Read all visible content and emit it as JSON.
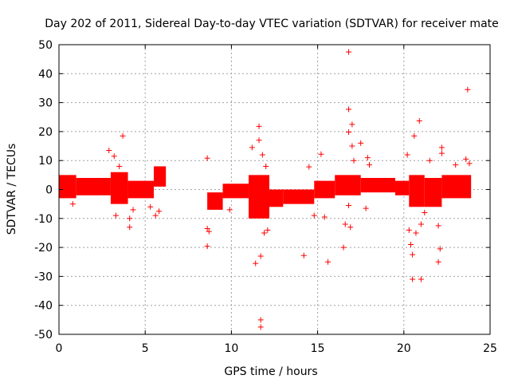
{
  "chart_data": {
    "type": "scatter",
    "title": "Day 202 of 2011, Sidereal Day-to-day VTEC variation (SDTVAR) for receiver mate",
    "xlabel": "GPS time / hours",
    "ylabel": "SDTVAR / TECUs",
    "xlim": [
      0,
      25
    ],
    "ylim": [
      -50,
      50
    ],
    "x_ticks": [
      0,
      5,
      10,
      15,
      20,
      25
    ],
    "y_ticks": [
      -50,
      -40,
      -30,
      -20,
      -10,
      0,
      10,
      20,
      30,
      40,
      50
    ],
    "grid": true,
    "marker": "+",
    "color": "#ff0000",
    "band_segments": [
      {
        "x": [
          0,
          1.0
        ],
        "y_low": -3,
        "y_high": 5
      },
      {
        "x": [
          1.0,
          3.0
        ],
        "y_low": -2,
        "y_high": 4
      },
      {
        "x": [
          3.0,
          4.0
        ],
        "y_low": -5,
        "y_high": 6
      },
      {
        "x": [
          4.0,
          5.5
        ],
        "y_low": -3,
        "y_high": 3
      },
      {
        "x": [
          5.5,
          6.2
        ],
        "y_low": 1,
        "y_high": 8
      },
      {
        "x": [
          8.6,
          9.5
        ],
        "y_low": -7,
        "y_high": -1
      },
      {
        "x": [
          9.5,
          11.0
        ],
        "y_low": -3,
        "y_high": 2
      },
      {
        "x": [
          11.0,
          12.2
        ],
        "y_low": -10,
        "y_high": 5
      },
      {
        "x": [
          12.2,
          13.0
        ],
        "y_low": -6,
        "y_high": 0
      },
      {
        "x": [
          13.0,
          14.8
        ],
        "y_low": -5,
        "y_high": 0
      },
      {
        "x": [
          14.8,
          16.0
        ],
        "y_low": -3,
        "y_high": 3
      },
      {
        "x": [
          16.0,
          17.5
        ],
        "y_low": -2,
        "y_high": 5
      },
      {
        "x": [
          17.5,
          19.5
        ],
        "y_low": -1,
        "y_high": 4
      },
      {
        "x": [
          19.5,
          20.3
        ],
        "y_low": -2,
        "y_high": 3
      },
      {
        "x": [
          20.3,
          21.2
        ],
        "y_low": -6,
        "y_high": 5
      },
      {
        "x": [
          21.2,
          22.2
        ],
        "y_low": -6,
        "y_high": 4
      },
      {
        "x": [
          22.2,
          23.9
        ],
        "y_low": -3,
        "y_high": 5
      }
    ],
    "outliers": [
      {
        "x": 0.8,
        "y": -5
      },
      {
        "x": 2.9,
        "y": 13.5
      },
      {
        "x": 3.2,
        "y": 11.5
      },
      {
        "x": 3.3,
        "y": -9
      },
      {
        "x": 3.7,
        "y": 18.5
      },
      {
        "x": 3.5,
        "y": 8
      },
      {
        "x": 4.1,
        "y": -10
      },
      {
        "x": 4.1,
        "y": -13
      },
      {
        "x": 4.3,
        "y": -7
      },
      {
        "x": 5.3,
        "y": -6
      },
      {
        "x": 5.6,
        "y": -9
      },
      {
        "x": 5.8,
        "y": -7.5
      },
      {
        "x": 8.6,
        "y": 10.8
      },
      {
        "x": 8.6,
        "y": -19.6
      },
      {
        "x": 8.6,
        "y": -13.5
      },
      {
        "x": 8.7,
        "y": -14.5
      },
      {
        "x": 9.9,
        "y": -7
      },
      {
        "x": 11.2,
        "y": 14.5
      },
      {
        "x": 11.4,
        "y": -25.5
      },
      {
        "x": 11.6,
        "y": 21.8
      },
      {
        "x": 11.6,
        "y": 17
      },
      {
        "x": 11.7,
        "y": -23
      },
      {
        "x": 11.7,
        "y": -45
      },
      {
        "x": 11.7,
        "y": -47.5
      },
      {
        "x": 11.8,
        "y": 12
      },
      {
        "x": 11.9,
        "y": -15
      },
      {
        "x": 12.1,
        "y": -14
      },
      {
        "x": 12.0,
        "y": 8
      },
      {
        "x": 14.2,
        "y": -22.8
      },
      {
        "x": 14.5,
        "y": 7.8
      },
      {
        "x": 14.8,
        "y": -9
      },
      {
        "x": 15.2,
        "y": 12.2
      },
      {
        "x": 15.4,
        "y": -9.5
      },
      {
        "x": 15.6,
        "y": -25
      },
      {
        "x": 16.5,
        "y": -20
      },
      {
        "x": 16.6,
        "y": -12
      },
      {
        "x": 16.8,
        "y": 47.5
      },
      {
        "x": 16.8,
        "y": 27.7
      },
      {
        "x": 16.8,
        "y": 19.8
      },
      {
        "x": 16.8,
        "y": -5.5
      },
      {
        "x": 16.9,
        "y": -13
      },
      {
        "x": 17.0,
        "y": 22.5
      },
      {
        "x": 17.0,
        "y": 15
      },
      {
        "x": 17.1,
        "y": 10
      },
      {
        "x": 17.5,
        "y": 16
      },
      {
        "x": 17.9,
        "y": 11
      },
      {
        "x": 17.8,
        "y": -6.5
      },
      {
        "x": 18.0,
        "y": 8.5
      },
      {
        "x": 20.2,
        "y": 12
      },
      {
        "x": 20.3,
        "y": -14
      },
      {
        "x": 20.4,
        "y": -19
      },
      {
        "x": 20.5,
        "y": -22.5
      },
      {
        "x": 20.6,
        "y": 18.5
      },
      {
        "x": 20.5,
        "y": -31
      },
      {
        "x": 20.7,
        "y": -15
      },
      {
        "x": 20.9,
        "y": 23.7
      },
      {
        "x": 21.0,
        "y": -31
      },
      {
        "x": 21.0,
        "y": -12
      },
      {
        "x": 21.2,
        "y": -8
      },
      {
        "x": 21.5,
        "y": 10
      },
      {
        "x": 22.0,
        "y": -12.5
      },
      {
        "x": 22.0,
        "y": -25
      },
      {
        "x": 22.1,
        "y": -20.5
      },
      {
        "x": 22.2,
        "y": 14.5
      },
      {
        "x": 22.2,
        "y": 12.5
      },
      {
        "x": 23.0,
        "y": 8.5
      },
      {
        "x": 23.6,
        "y": 10.5
      },
      {
        "x": 23.7,
        "y": 34.5
      },
      {
        "x": 23.8,
        "y": 9
      }
    ]
  }
}
